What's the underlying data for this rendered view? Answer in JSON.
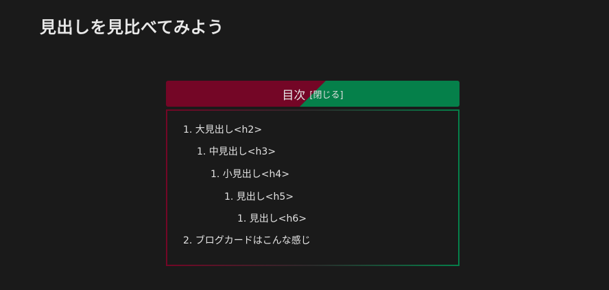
{
  "page": {
    "title": "見出しを見比べてみよう"
  },
  "toc": {
    "title": "目次",
    "toggle_label": "[閉じる]",
    "colors": {
      "left": "#740626",
      "right": "#05804a",
      "background": "#1a1a1a"
    },
    "items": [
      {
        "label": "1. 大見出し<h2>",
        "level": 2
      },
      {
        "label": "1. 中見出し<h3>",
        "level": 3
      },
      {
        "label": "1. 小見出し<h4>",
        "level": 4
      },
      {
        "label": "1. 見出し<h5>",
        "level": 5
      },
      {
        "label": "1. 見出し<h6>",
        "level": 6
      },
      {
        "label": "2. ブログカードはこんな感じ",
        "level": 2
      }
    ]
  }
}
